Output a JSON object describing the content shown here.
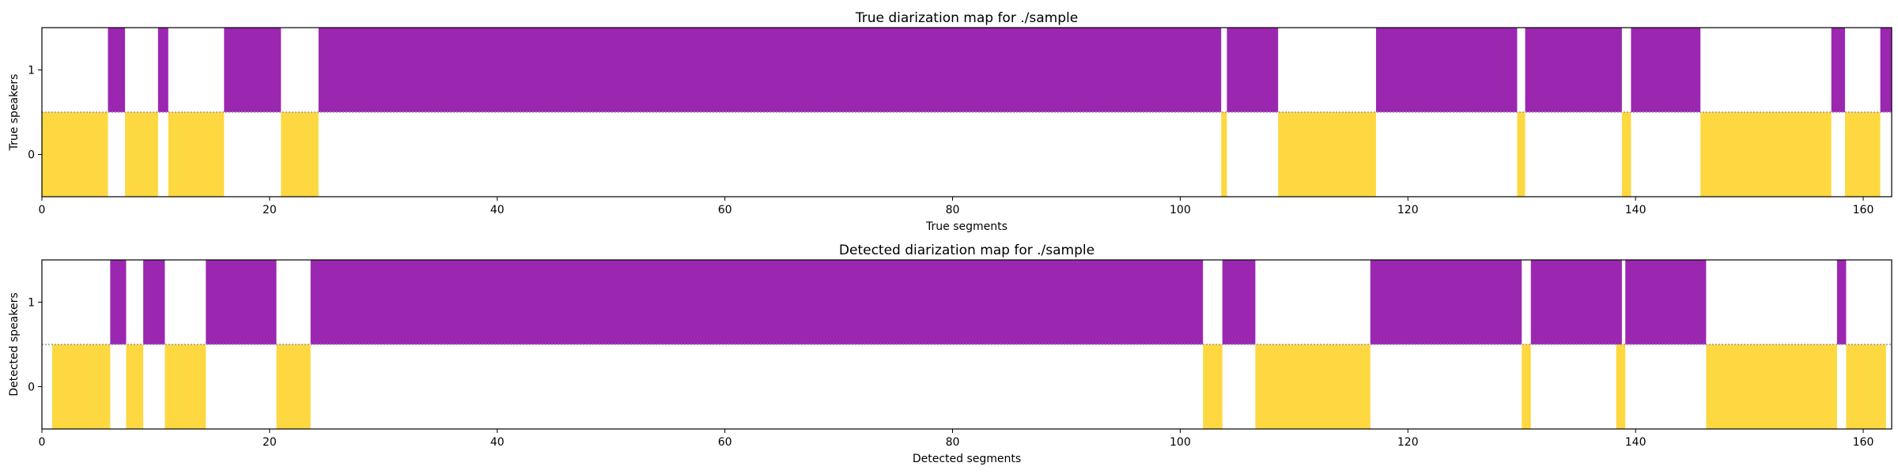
{
  "colors": {
    "speaker_1": "#9b27b1",
    "speaker_0": "#fdd840",
    "divider": "#9a9a9a",
    "axis": "#000000"
  },
  "chart_data": [
    {
      "type": "bar",
      "title": "True diarization map for ./sample",
      "xlabel": "True segments",
      "ylabel": "True speakers",
      "xlim": [
        0,
        162.5
      ],
      "xticks": [
        0,
        20,
        40,
        60,
        80,
        100,
        120,
        140,
        160
      ],
      "yticks": [
        "0",
        "1"
      ],
      "grid": false,
      "series": [
        {
          "speaker": 1,
          "color": "#9b27b1",
          "segments": [
            [
              5.8,
              7.3
            ],
            [
              10.2,
              11.1
            ],
            [
              16.0,
              21.0
            ],
            [
              24.3,
              103.6
            ],
            [
              104.1,
              108.6
            ],
            [
              117.2,
              129.6
            ],
            [
              130.3,
              138.8
            ],
            [
              139.6,
              145.7
            ],
            [
              157.2,
              158.4
            ],
            [
              161.5,
              162.5
            ]
          ]
        },
        {
          "speaker": 0,
          "color": "#fdd840",
          "segments": [
            [
              0.0,
              5.8
            ],
            [
              7.3,
              10.2
            ],
            [
              11.1,
              16.0
            ],
            [
              21.0,
              24.3
            ],
            [
              103.6,
              104.1
            ],
            [
              108.6,
              117.2
            ],
            [
              129.6,
              130.3
            ],
            [
              138.8,
              139.6
            ],
            [
              145.7,
              157.2
            ],
            [
              158.4,
              161.5
            ]
          ]
        }
      ]
    },
    {
      "type": "bar",
      "title": "Detected diarization map for ./sample",
      "xlabel": "Detected segments",
      "ylabel": "Detected speakers",
      "xlim": [
        0,
        162.5
      ],
      "xticks": [
        0,
        20,
        40,
        60,
        80,
        100,
        120,
        140,
        160
      ],
      "yticks": [
        "0",
        "1"
      ],
      "grid": false,
      "series": [
        {
          "speaker": 1,
          "color": "#9b27b1",
          "segments": [
            [
              6.0,
              7.4
            ],
            [
              8.9,
              10.8
            ],
            [
              14.4,
              20.6
            ],
            [
              23.6,
              102.0
            ],
            [
              103.7,
              106.6
            ],
            [
              116.7,
              130.0
            ],
            [
              130.8,
              138.8
            ],
            [
              139.1,
              146.2
            ],
            [
              157.7,
              158.5
            ]
          ]
        },
        {
          "speaker": 0,
          "color": "#fdd840",
          "segments": [
            [
              0.9,
              6.0
            ],
            [
              7.4,
              8.9
            ],
            [
              10.8,
              14.4
            ],
            [
              20.6,
              23.6
            ],
            [
              102.0,
              103.7
            ],
            [
              106.6,
              116.7
            ],
            [
              130.0,
              130.8
            ],
            [
              138.3,
              139.1
            ],
            [
              146.2,
              157.7
            ],
            [
              158.5,
              162.0
            ]
          ]
        }
      ]
    }
  ]
}
